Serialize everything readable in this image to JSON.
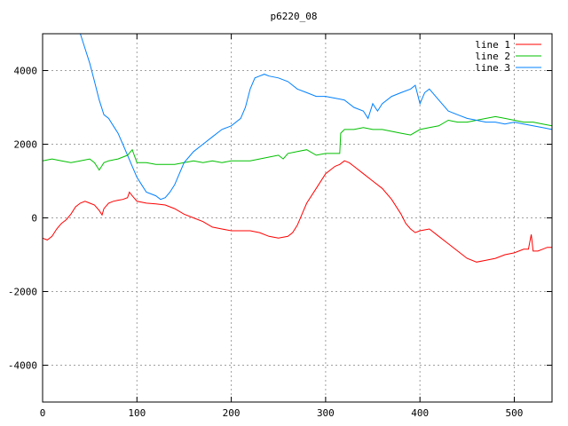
{
  "chart_data": {
    "type": "line",
    "title": "p6220_08",
    "xlabel": "",
    "ylabel": "",
    "xlim": [
      0,
      540
    ],
    "ylim": [
      -5000,
      5000
    ],
    "xticks": [
      0,
      100,
      200,
      300,
      400,
      500
    ],
    "yticks": [
      -4000,
      -2000,
      0,
      2000,
      4000
    ],
    "grid": true,
    "legend_position": "top-right",
    "series": [
      {
        "name": "line 1",
        "color": "#ff0000",
        "x": [
          0,
          5,
          10,
          15,
          20,
          25,
          30,
          35,
          40,
          45,
          50,
          55,
          60,
          63,
          65,
          70,
          75,
          80,
          85,
          90,
          92,
          95,
          100,
          110,
          120,
          130,
          140,
          150,
          160,
          170,
          180,
          190,
          200,
          210,
          220,
          230,
          240,
          250,
          260,
          265,
          270,
          275,
          280,
          290,
          300,
          310,
          315,
          320,
          325,
          330,
          340,
          350,
          360,
          370,
          380,
          385,
          390,
          395,
          400,
          410,
          420,
          430,
          440,
          450,
          460,
          470,
          480,
          490,
          500,
          510,
          515,
          518,
          520,
          525,
          530,
          535,
          540
        ],
        "y": [
          -550,
          -600,
          -500,
          -300,
          -150,
          -50,
          100,
          300,
          400,
          450,
          400,
          350,
          200,
          80,
          250,
          400,
          450,
          480,
          500,
          550,
          700,
          600,
          450,
          400,
          380,
          350,
          250,
          100,
          0,
          -100,
          -250,
          -300,
          -350,
          -350,
          -350,
          -400,
          -500,
          -550,
          -500,
          -400,
          -200,
          100,
          400,
          800,
          1200,
          1400,
          1450,
          1550,
          1500,
          1400,
          1200,
          1000,
          800,
          500,
          100,
          -150,
          -300,
          -400,
          -350,
          -300,
          -500,
          -700,
          -900,
          -1100,
          -1200,
          -1150,
          -1100,
          -1000,
          -950,
          -850,
          -850,
          -450,
          -900,
          -900,
          -850,
          -800,
          -800
        ]
      },
      {
        "name": "line 2",
        "color": "#00c000",
        "x": [
          0,
          10,
          20,
          30,
          40,
          50,
          55,
          60,
          65,
          70,
          80,
          90,
          95,
          100,
          110,
          120,
          130,
          140,
          150,
          160,
          170,
          180,
          190,
          200,
          210,
          220,
          230,
          240,
          250,
          255,
          260,
          270,
          280,
          290,
          300,
          310,
          315,
          316,
          320,
          330,
          340,
          350,
          360,
          370,
          380,
          390,
          400,
          410,
          420,
          430,
          440,
          450,
          460,
          470,
          480,
          490,
          500,
          510,
          520,
          530,
          540
        ],
        "y": [
          1550,
          1600,
          1550,
          1500,
          1550,
          1600,
          1500,
          1300,
          1500,
          1550,
          1600,
          1700,
          1850,
          1500,
          1500,
          1450,
          1450,
          1450,
          1500,
          1550,
          1500,
          1550,
          1500,
          1550,
          1550,
          1550,
          1600,
          1650,
          1700,
          1600,
          1750,
          1800,
          1850,
          1700,
          1750,
          1750,
          1750,
          2300,
          2400,
          2400,
          2450,
          2400,
          2400,
          2350,
          2300,
          2250,
          2400,
          2450,
          2500,
          2650,
          2600,
          2600,
          2650,
          2700,
          2750,
          2700,
          2650,
          2600,
          2600,
          2550,
          2500
        ]
      },
      {
        "name": "line 3",
        "color": "#0080ff",
        "x": [
          40,
          45,
          50,
          55,
          60,
          65,
          70,
          75,
          80,
          85,
          90,
          95,
          100,
          105,
          110,
          115,
          120,
          125,
          130,
          135,
          140,
          145,
          150,
          160,
          170,
          180,
          190,
          200,
          210,
          215,
          220,
          225,
          230,
          235,
          240,
          250,
          260,
          270,
          280,
          290,
          300,
          310,
          320,
          330,
          340,
          345,
          350,
          355,
          360,
          370,
          380,
          390,
          395,
          400,
          405,
          410,
          420,
          430,
          440,
          450,
          460,
          470,
          480,
          490,
          500,
          510,
          520,
          530,
          540
        ],
        "y": [
          5000,
          4600,
          4200,
          3700,
          3200,
          2800,
          2700,
          2500,
          2300,
          2000,
          1700,
          1400,
          1100,
          900,
          700,
          650,
          600,
          500,
          550,
          700,
          900,
          1200,
          1500,
          1800,
          2000,
          2200,
          2400,
          2500,
          2700,
          3000,
          3500,
          3800,
          3850,
          3900,
          3850,
          3800,
          3700,
          3500,
          3400,
          3300,
          3300,
          3250,
          3200,
          3000,
          2900,
          2700,
          3100,
          2900,
          3100,
          3300,
          3400,
          3500,
          3600,
          3100,
          3400,
          3500,
          3200,
          2900,
          2800,
          2700,
          2650,
          2600,
          2600,
          2550,
          2600,
          2550,
          2500,
          2450,
          2400
        ]
      }
    ]
  }
}
